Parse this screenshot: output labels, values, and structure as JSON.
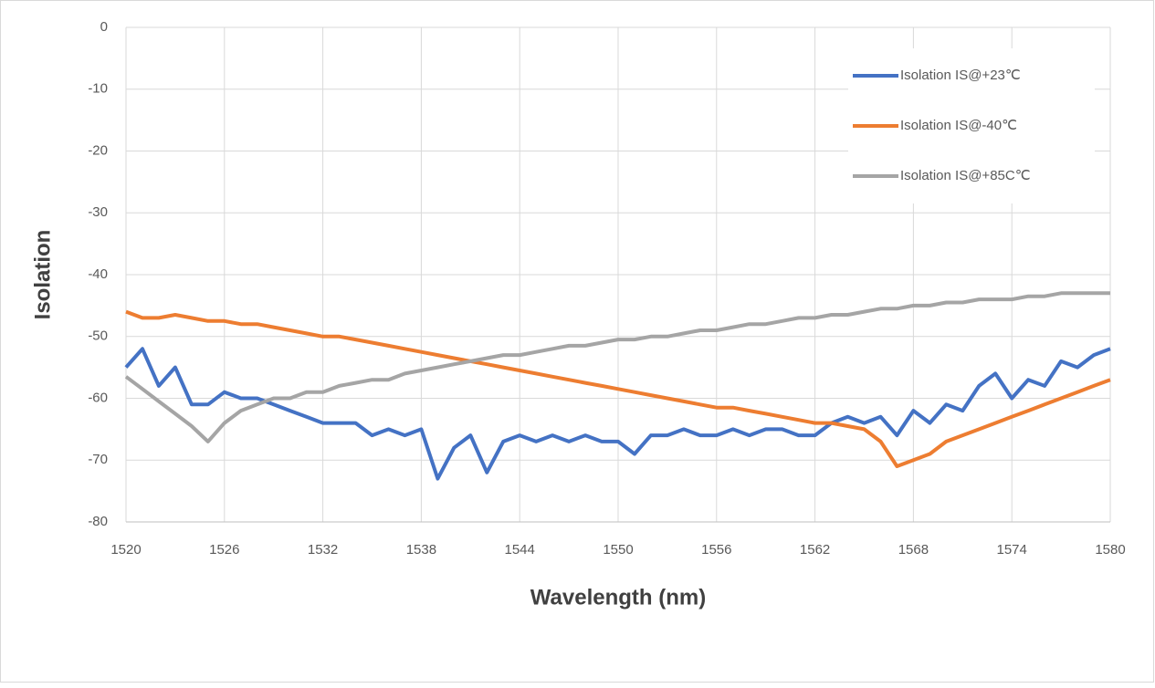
{
  "chart_data": {
    "type": "line",
    "x_label": "Wavelength (nm)",
    "y_label": "Isolation",
    "x": [
      1520,
      1521,
      1522,
      1523,
      1524,
      1525,
      1526,
      1527,
      1528,
      1529,
      1530,
      1531,
      1532,
      1533,
      1534,
      1535,
      1536,
      1537,
      1538,
      1539,
      1540,
      1541,
      1542,
      1543,
      1544,
      1545,
      1546,
      1547,
      1548,
      1549,
      1550,
      1551,
      1552,
      1553,
      1554,
      1555,
      1556,
      1557,
      1558,
      1559,
      1560,
      1561,
      1562,
      1563,
      1564,
      1565,
      1566,
      1567,
      1568,
      1569,
      1570,
      1571,
      1572,
      1573,
      1574,
      1575,
      1576,
      1577,
      1578,
      1579,
      1580
    ],
    "series": [
      {
        "name": "Isolation IS@+23℃",
        "color": "#4472c4",
        "values": [
          -55,
          -52,
          -58,
          -55,
          -61,
          -61,
          -59,
          -60,
          -60,
          -61,
          -62,
          -63,
          -64,
          -64,
          -64,
          -66,
          -65,
          -66,
          -65,
          -73,
          -68,
          -66,
          -72,
          -67,
          -66,
          -67,
          -66,
          -67,
          -66,
          -67,
          -67,
          -69,
          -66,
          -66,
          -65,
          -66,
          -66,
          -65,
          -66,
          -65,
          -65,
          -66,
          -66,
          -64,
          -63,
          -64,
          -63,
          -66,
          -62,
          -64,
          -61,
          -62,
          -58,
          -56,
          -60,
          -57,
          -58,
          -54,
          -55,
          -53,
          -52
        ]
      },
      {
        "name": "Isolation IS@-40℃",
        "color": "#ed7d31",
        "values": [
          -46,
          -47,
          -47,
          -46.5,
          -47,
          -47.5,
          -47.5,
          -48,
          -48,
          -48.5,
          -49,
          -49.5,
          -50,
          -50,
          -50.5,
          -51,
          -51.5,
          -52,
          -52.5,
          -53,
          -53.5,
          -54,
          -54.5,
          -55,
          -55.5,
          -56,
          -56.5,
          -57,
          -57.5,
          -58,
          -58.5,
          -59,
          -59.5,
          -60,
          -60.5,
          -61,
          -61.5,
          -61.5,
          -62,
          -62.5,
          -63,
          -63.5,
          -64,
          -64,
          -64.5,
          -65,
          -67,
          -71,
          -70,
          -69,
          -67,
          -66,
          -65,
          -64,
          -63,
          -62,
          -61,
          -60,
          -59,
          -58,
          -57
        ]
      },
      {
        "name": "Isolation IS@+85C℃",
        "color": "#a5a5a5",
        "values": [
          -56.5,
          -58.5,
          -60.5,
          -62.5,
          -64.5,
          -67,
          -64,
          -62,
          -61,
          -60,
          -60,
          -59,
          -59,
          -58,
          -57.5,
          -57,
          -57,
          -56,
          -55.5,
          -55,
          -54.5,
          -54,
          -53.5,
          -53,
          -53,
          -52.5,
          -52,
          -51.5,
          -51.5,
          -51,
          -50.5,
          -50.5,
          -50,
          -50,
          -49.5,
          -49,
          -49,
          -48.5,
          -48,
          -48,
          -47.5,
          -47,
          -47,
          -46.5,
          -46.5,
          -46,
          -45.5,
          -45.5,
          -45,
          -45,
          -44.5,
          -44.5,
          -44,
          -44,
          -44,
          -43.5,
          -43.5,
          -43,
          -43,
          -43,
          -43
        ]
      }
    ],
    "xlim": [
      1520,
      1580
    ],
    "xticks": [
      1520,
      1526,
      1532,
      1538,
      1544,
      1550,
      1556,
      1562,
      1568,
      1574,
      1580
    ],
    "ylim": [
      -80,
      0
    ],
    "yticks": [
      0,
      -10,
      -20,
      -30,
      -40,
      -50,
      -60,
      -70,
      -80
    ],
    "grid": true,
    "legend": "upper-right"
  }
}
